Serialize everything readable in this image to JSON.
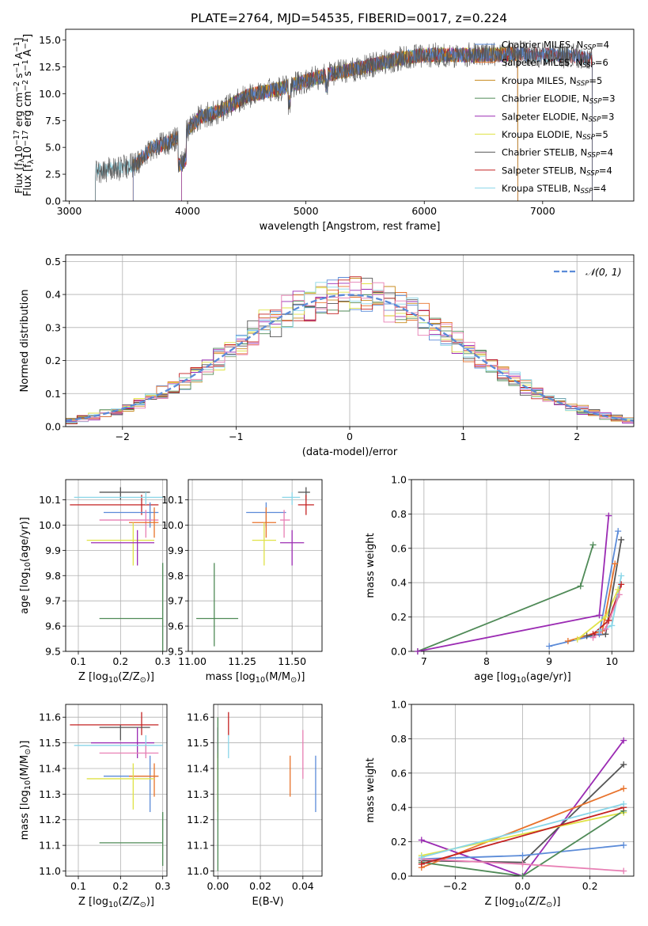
{
  "title": "PLATE=2764, MJD=54535, FIBERID=0017, z=0.224",
  "colors": {
    "Chabrier MILES": "#5b8bd8",
    "Salpeter MILES": "#e8722b",
    "Kroupa MILES": "#c88b1e",
    "Chabrier ELODIE": "#4f8a57",
    "Salpeter ELODIE": "#9b2bb3",
    "Kroupa ELODIE": "#dfe246",
    "Chabrier STELIB": "#555555",
    "Salpeter STELIB": "#c42222",
    "Kroupa STELIB": "#89d6e8",
    "Pink": "#e87fb4"
  },
  "chart_data": [
    {
      "type": "line",
      "panel": "spectrum",
      "title": "PLATE=2764, MJD=54535, FIBERID=0017, z=0.224",
      "xlabel": "wavelength [Angstrom, rest frame]",
      "ylabel": "Flux [f$_\\lambda$10$^{-17}$ erg cm$^{-2}$ s$^{-1}$ A$^{-1}$]",
      "ylabel_parts": {
        "pre": "Flux [f",
        "sub1": "λ",
        "mid": "10",
        "sup1": "−17",
        "mid2": " erg cm",
        "sup2": "−2",
        "mid3": " s",
        "sup3": "−1",
        "mid4": " A",
        "sup4": "−1",
        "post": "]"
      },
      "xlim": [
        2970,
        7770
      ],
      "ylim": [
        0,
        16
      ],
      "xticks": [
        3000,
        4000,
        5000,
        6000,
        7000
      ],
      "yticks": [
        0.0,
        2.5,
        5.0,
        7.5,
        10.0,
        12.5,
        15.0
      ],
      "legend_position": "right",
      "legend": [
        {
          "name": "Chabrier MILES",
          "nssp": "4"
        },
        {
          "name": "Salpeter MILES",
          "nssp": "6"
        },
        {
          "name": "Kroupa MILES",
          "nssp": "5"
        },
        {
          "name": "Chabrier ELODIE",
          "nssp": "3"
        },
        {
          "name": "Salpeter ELODIE",
          "nssp": "3"
        },
        {
          "name": "Kroupa ELODIE",
          "nssp": "5"
        },
        {
          "name": "Chabrier STELIB",
          "nssp": "4"
        },
        {
          "name": "Salpeter STELIB",
          "nssp": "4"
        },
        {
          "name": "Kroupa STELIB",
          "nssp": "4"
        }
      ],
      "continuum": [
        [
          3220,
          2.8
        ],
        [
          3400,
          3.0
        ],
        [
          3560,
          3.4
        ],
        [
          3700,
          5.0
        ],
        [
          3800,
          5.3
        ],
        [
          3950,
          6.0
        ],
        [
          4100,
          7.8
        ],
        [
          4300,
          8.5
        ],
        [
          4500,
          9.8
        ],
        [
          4800,
          10.5
        ],
        [
          5000,
          11.2
        ],
        [
          5200,
          11.8
        ],
        [
          5500,
          12.5
        ],
        [
          5800,
          13.3
        ],
        [
          6000,
          13.6
        ],
        [
          6300,
          13.6
        ],
        [
          6500,
          13.6
        ],
        [
          6800,
          13.7
        ],
        [
          7000,
          13.6
        ],
        [
          7300,
          13.5
        ],
        [
          7420,
          13.2
        ]
      ]
    },
    {
      "type": "step",
      "panel": "residual-histogram",
      "xlabel": "(data-model)/error",
      "ylabel": "Normed distribution",
      "xlim": [
        -2.5,
        2.5
      ],
      "ylim": [
        0,
        0.52
      ],
      "xticks": [
        -2,
        -1,
        0,
        1,
        2
      ],
      "yticks": [
        0.0,
        0.1,
        0.2,
        0.3,
        0.4,
        0.5
      ],
      "reference_label": "𝒩(0, 1)",
      "reference_curve": "standard normal",
      "legend_position": "top-right"
    },
    {
      "type": "scatter",
      "panel": "age-vs-Z",
      "xlabel": "Z [log$_{10}$(Z/Z$_\\odot$)]",
      "ylabel": "age  [log$_{10}$(age/yr)]",
      "xlim": [
        0.07,
        0.31
      ],
      "ylim": [
        9.5,
        10.18
      ],
      "xticks": [
        0.1,
        0.2,
        0.3
      ],
      "yticks": [
        9.5,
        9.6,
        9.7,
        9.8,
        9.9,
        10.0,
        10.1
      ],
      "points": [
        {
          "x": 0.2,
          "y": 10.13,
          "xerr": [
            0.15,
            0.27
          ],
          "yerr": [
            10.1,
            10.15
          ],
          "c": "Chabrier STELIB"
        },
        {
          "x": 0.25,
          "y": 10.08,
          "xerr": [
            0.08,
            0.29
          ],
          "yerr": [
            10.04,
            10.12
          ],
          "c": "Salpeter STELIB"
        },
        {
          "x": 0.26,
          "y": 10.11,
          "xerr": [
            0.09,
            0.3
          ],
          "yerr": [
            10.08,
            10.13
          ],
          "c": "Kroupa STELIB"
        },
        {
          "x": 0.27,
          "y": 10.05,
          "xerr": [
            0.16,
            0.29
          ],
          "yerr": [
            9.99,
            10.09
          ],
          "c": "Chabrier MILES"
        },
        {
          "x": 0.26,
          "y": 10.02,
          "xerr": [
            0.15,
            0.29
          ],
          "yerr": [
            9.95,
            10.06
          ],
          "c": "Pink"
        },
        {
          "x": 0.28,
          "y": 10.01,
          "xerr": [
            0.22,
            0.29
          ],
          "yerr": [
            9.95,
            10.07
          ],
          "c": "Salpeter MILES"
        },
        {
          "x": 0.23,
          "y": 9.94,
          "xerr": [
            0.12,
            0.28
          ],
          "yerr": [
            9.84,
            10.01
          ],
          "c": "Kroupa ELODIE"
        },
        {
          "x": 0.24,
          "y": 9.93,
          "xerr": [
            0.13,
            0.28
          ],
          "yerr": [
            9.84,
            9.98
          ],
          "c": "Salpeter ELODIE"
        },
        {
          "x": 0.3,
          "y": 9.63,
          "xerr": [
            0.15,
            0.3
          ],
          "yerr": [
            9.41,
            9.85
          ],
          "c": "Chabrier ELODIE"
        }
      ]
    },
    {
      "type": "scatter",
      "panel": "age-vs-mass",
      "xlabel": "mass [log$_{10}$(M/M$_\\odot$)]",
      "ylabel": "",
      "xlim": [
        10.98,
        11.65
      ],
      "ylim": [
        9.5,
        10.18
      ],
      "xticks": [
        11.0,
        11.25,
        11.5
      ],
      "yticks": [
        9.5,
        9.6,
        9.7,
        9.8,
        9.9,
        10.0,
        10.1
      ],
      "points": [
        {
          "x": 11.57,
          "y": 10.13,
          "xerr": [
            11.53,
            11.59
          ],
          "yerr": [
            10.1,
            10.15
          ],
          "c": "Chabrier STELIB"
        },
        {
          "x": 11.57,
          "y": 10.08,
          "xerr": [
            11.53,
            11.61
          ],
          "yerr": [
            10.04,
            10.12
          ],
          "c": "Salpeter STELIB"
        },
        {
          "x": 11.5,
          "y": 10.11,
          "xerr": [
            11.45,
            11.54
          ],
          "yerr": [
            10.08,
            10.13
          ],
          "c": "Kroupa STELIB"
        },
        {
          "x": 11.37,
          "y": 10.05,
          "xerr": [
            11.27,
            11.47
          ],
          "yerr": [
            9.99,
            10.09
          ],
          "c": "Chabrier MILES"
        },
        {
          "x": 11.46,
          "y": 10.02,
          "xerr": [
            11.44,
            11.49
          ],
          "yerr": [
            9.95,
            10.06
          ],
          "c": "Pink"
        },
        {
          "x": 11.37,
          "y": 10.01,
          "xerr": [
            11.3,
            11.42
          ],
          "yerr": [
            9.95,
            10.07
          ],
          "c": "Salpeter MILES"
        },
        {
          "x": 11.36,
          "y": 9.94,
          "xerr": [
            11.3,
            11.42
          ],
          "yerr": [
            9.84,
            10.01
          ],
          "c": "Kroupa ELODIE"
        },
        {
          "x": 11.5,
          "y": 9.93,
          "xerr": [
            11.44,
            11.56
          ],
          "yerr": [
            9.84,
            9.98
          ],
          "c": "Salpeter ELODIE"
        },
        {
          "x": 11.11,
          "y": 9.63,
          "xerr": [
            11.02,
            11.23
          ],
          "yerr": [
            9.52,
            9.85
          ],
          "c": "Chabrier ELODIE"
        }
      ]
    },
    {
      "type": "line",
      "panel": "mass-weight-vs-age",
      "xlabel": "age  [log$_{10}$(age/yr)]",
      "ylabel": "mass weight",
      "xlim": [
        6.8,
        10.35
      ],
      "ylim": [
        0,
        1.0
      ],
      "xticks": [
        7,
        8,
        9,
        10
      ],
      "yticks": [
        0.0,
        0.2,
        0.4,
        0.6,
        0.8,
        1.0
      ],
      "series": [
        {
          "c": "Chabrier ELODIE",
          "x": [
            6.9,
            9.5,
            9.7
          ],
          "y": [
            0.0,
            0.38,
            0.62
          ]
        },
        {
          "c": "Salpeter ELODIE",
          "x": [
            6.9,
            9.8,
            9.95
          ],
          "y": [
            0.0,
            0.21,
            0.79
          ]
        },
        {
          "c": "Chabrier MILES",
          "x": [
            9.0,
            9.8,
            10.1
          ],
          "y": [
            0.03,
            0.1,
            0.7
          ]
        },
        {
          "c": "Salpeter MILES",
          "x": [
            9.3,
            9.85,
            10.05
          ],
          "y": [
            0.06,
            0.12,
            0.51
          ]
        },
        {
          "c": "Kroupa ELODIE",
          "x": [
            9.45,
            9.9,
            10.1
          ],
          "y": [
            0.07,
            0.2,
            0.36
          ]
        },
        {
          "c": "Chabrier STELIB",
          "x": [
            9.6,
            9.9,
            10.15
          ],
          "y": [
            0.09,
            0.1,
            0.65
          ]
        },
        {
          "c": "Salpeter STELIB",
          "x": [
            9.7,
            9.95,
            10.15
          ],
          "y": [
            0.1,
            0.18,
            0.39
          ]
        },
        {
          "c": "Kroupa STELIB",
          "x": [
            9.8,
            10.0,
            10.15
          ],
          "y": [
            0.12,
            0.15,
            0.44
          ]
        },
        {
          "c": "Pink",
          "x": [
            9.7,
            9.9,
            10.12
          ],
          "y": [
            0.08,
            0.13,
            0.33
          ]
        }
      ]
    },
    {
      "type": "scatter",
      "panel": "mass-vs-Z",
      "xlabel": "Z [log$_{10}$(Z/Z$_\\odot$)]",
      "ylabel": "mass [log$_{10}$(M/M$_\\odot$)]",
      "xlim": [
        0.07,
        0.31
      ],
      "ylim": [
        10.98,
        11.65
      ],
      "xticks": [
        0.1,
        0.2,
        0.3
      ],
      "yticks": [
        11.0,
        11.1,
        11.2,
        11.3,
        11.4,
        11.5,
        11.6
      ],
      "points": [
        {
          "x": 0.25,
          "y": 11.57,
          "xerr": [
            0.08,
            0.29
          ],
          "yerr": [
            11.53,
            11.62
          ],
          "c": "Salpeter STELIB"
        },
        {
          "x": 0.2,
          "y": 11.56,
          "xerr": [
            0.15,
            0.27
          ],
          "yerr": [
            11.51,
            11.57
          ],
          "c": "Chabrier STELIB"
        },
        {
          "x": 0.24,
          "y": 11.5,
          "xerr": [
            0.13,
            0.28
          ],
          "yerr": [
            11.44,
            11.56
          ],
          "c": "Salpeter ELODIE"
        },
        {
          "x": 0.26,
          "y": 11.49,
          "xerr": [
            0.09,
            0.3
          ],
          "yerr": [
            11.45,
            11.53
          ],
          "c": "Kroupa STELIB"
        },
        {
          "x": 0.26,
          "y": 11.46,
          "xerr": [
            0.15,
            0.29
          ],
          "yerr": [
            11.44,
            11.49
          ],
          "c": "Pink"
        },
        {
          "x": 0.27,
          "y": 11.37,
          "xerr": [
            0.16,
            0.29
          ],
          "yerr": [
            11.23,
            11.45
          ],
          "c": "Chabrier MILES"
        },
        {
          "x": 0.28,
          "y": 11.37,
          "xerr": [
            0.22,
            0.29
          ],
          "yerr": [
            11.29,
            11.42
          ],
          "c": "Salpeter MILES"
        },
        {
          "x": 0.23,
          "y": 11.36,
          "xerr": [
            0.12,
            0.28
          ],
          "yerr": [
            11.24,
            11.42
          ],
          "c": "Kroupa ELODIE"
        },
        {
          "x": 0.3,
          "y": 11.11,
          "xerr": [
            0.15,
            0.3
          ],
          "yerr": [
            11.02,
            11.23
          ],
          "c": "Chabrier ELODIE"
        }
      ]
    },
    {
      "type": "scatter",
      "panel": "mass-vs-ebv",
      "xlabel": "E(B-V)",
      "ylabel": "",
      "xlim": [
        -0.002,
        0.049
      ],
      "ylim": [
        10.98,
        11.65
      ],
      "xticks": [
        0.0,
        0.02,
        0.04
      ],
      "yticks": [
        11.0,
        11.1,
        11.2,
        11.3,
        11.4,
        11.5,
        11.6
      ],
      "points": [
        {
          "x": 0.005,
          "y": 11.57,
          "xerr": [
            0.005,
            0.005
          ],
          "yerr": [
            11.53,
            11.62
          ],
          "c": "Salpeter STELIB"
        },
        {
          "x": 0.0,
          "y": 11.5,
          "xerr": [
            0.0,
            0.0
          ],
          "yerr": [
            11.44,
            11.56
          ],
          "c": "Salpeter ELODIE"
        },
        {
          "x": 0.005,
          "y": 11.49,
          "xerr": [
            0.005,
            0.005
          ],
          "yerr": [
            11.44,
            11.53
          ],
          "c": "Kroupa STELIB"
        },
        {
          "x": 0.04,
          "y": 11.46,
          "xerr": [
            0.04,
            0.04
          ],
          "yerr": [
            11.36,
            11.55
          ],
          "c": "Pink"
        },
        {
          "x": 0.034,
          "y": 11.37,
          "xerr": [
            0.034,
            0.034
          ],
          "yerr": [
            11.29,
            11.45
          ],
          "c": "Salpeter MILES"
        },
        {
          "x": 0.046,
          "y": 11.34,
          "xerr": [
            0.046,
            0.046
          ],
          "yerr": [
            11.23,
            11.45
          ],
          "c": "Chabrier MILES"
        },
        {
          "x": 0.0,
          "y": 11.36,
          "xerr": [
            0.0,
            0.0
          ],
          "yerr": [
            11.23,
            11.46
          ],
          "c": "Kroupa ELODIE"
        },
        {
          "x": 0.0,
          "y": 11.3,
          "xerr": [
            0.0,
            0.0
          ],
          "yerr": [
            11.0,
            11.6
          ],
          "c": "Chabrier ELODIE"
        }
      ]
    },
    {
      "type": "line",
      "panel": "mass-weight-vs-Z",
      "xlabel": "Z [log$_{10}$(Z/Z$_\\odot$)]",
      "ylabel": "mass weight",
      "xlim": [
        -0.33,
        0.33
      ],
      "ylim": [
        0,
        1.0
      ],
      "xticks": [
        -0.2,
        0.0,
        0.2
      ],
      "yticks": [
        0.0,
        0.2,
        0.4,
        0.6,
        0.8,
        1.0
      ],
      "series": [
        {
          "c": "Salpeter ELODIE",
          "x": [
            -0.3,
            0.0,
            0.3
          ],
          "y": [
            0.21,
            0.0,
            0.79
          ]
        },
        {
          "c": "Chabrier STELIB",
          "x": [
            -0.3,
            0.0,
            0.3
          ],
          "y": [
            0.09,
            0.08,
            0.65
          ]
        },
        {
          "c": "Chabrier MILES",
          "x": [
            -0.3,
            0.0,
            0.3
          ],
          "y": [
            0.1,
            0.12,
            0.18
          ]
        },
        {
          "c": "Salpeter MILES",
          "x": [
            -0.3,
            0.3
          ],
          "y": [
            0.05,
            0.51
          ]
        },
        {
          "c": "Kroupa ELODIE",
          "x": [
            -0.3,
            0.3
          ],
          "y": [
            0.12,
            0.37
          ]
        },
        {
          "c": "Chabrier ELODIE",
          "x": [
            -0.3,
            0.0,
            0.3
          ],
          "y": [
            0.08,
            0.0,
            0.38
          ]
        },
        {
          "c": "Pink",
          "x": [
            -0.3,
            0.0,
            0.3
          ],
          "y": [
            0.1,
            0.07,
            0.03
          ]
        },
        {
          "c": "Salpeter STELIB",
          "x": [
            -0.3,
            0.3
          ],
          "y": [
            0.07,
            0.4
          ]
        },
        {
          "c": "Kroupa STELIB",
          "x": [
            -0.3,
            0.3
          ],
          "y": [
            0.11,
            0.42
          ]
        }
      ]
    }
  ]
}
